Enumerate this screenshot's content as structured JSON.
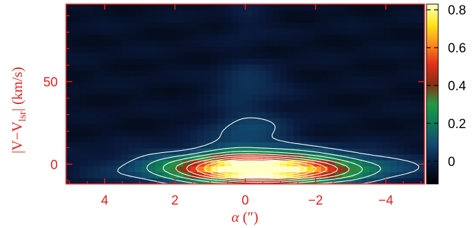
{
  "chart_data": {
    "type": "heatmap",
    "title": "",
    "xlabel": "α (″)",
    "ylabel": "|V−V_lsr| (km/s)",
    "ylabel_parts": {
      "prefix": "|V−V",
      "sub": "lsr",
      "suffix": "| (km/s)"
    },
    "xlabel_parts": {
      "alpha": "α",
      "unit": " (″)"
    },
    "xlim": [
      5.1,
      -5.1
    ],
    "ylim": [
      -12,
      97
    ],
    "x_ticks": [
      4,
      2,
      0,
      -2,
      -4
    ],
    "x_tick_labels": [
      "4",
      "2",
      "0",
      "−2",
      "−4"
    ],
    "y_ticks": [
      0,
      50
    ],
    "y_tick_labels": [
      "0",
      "50"
    ],
    "colorbar": {
      "range": [
        -0.12,
        0.83
      ],
      "ticks": [
        0,
        0.2,
        0.4,
        0.6,
        0.8
      ],
      "tick_labels": [
        "0",
        "0.2",
        "0.4",
        "0.6",
        "0.8"
      ],
      "colormap": [
        "#000000",
        "#0a1a3c",
        "#124a70",
        "#0f7a5a",
        "#239944",
        "#8a2d10",
        "#e0301a",
        "#ff8c1e",
        "#ffe619",
        "#ffffc8"
      ]
    },
    "emission_model": {
      "base_level": -0.05,
      "peak_x": -0.3,
      "peak_y": -3,
      "peak_value": 0.82,
      "notes_components": [
        {
          "amp": 0.82,
          "x0": -0.3,
          "sx": 1.3,
          "y0": -3,
          "sy": 5
        },
        {
          "amp": 0.3,
          "x0": 0.0,
          "sx": 2.3,
          "y0": -2,
          "sy": 8
        },
        {
          "amp": 0.12,
          "x0": 0.0,
          "sx": 0.8,
          "y0": 20,
          "sy": 12
        },
        {
          "amp": 0.1,
          "x0": 0.0,
          "sx": 0.6,
          "y0": 50,
          "sy": 7
        },
        {
          "amp": 0.04,
          "x0": 0.0,
          "sx": 0.4,
          "y0": 85,
          "sy": 10
        }
      ]
    },
    "contour_levels": [
      0.05,
      0.15,
      0.25,
      0.35,
      0.45,
      0.55,
      0.65,
      0.75
    ],
    "contour_color": "#ffffff",
    "frame_color": "#e61f1f"
  }
}
